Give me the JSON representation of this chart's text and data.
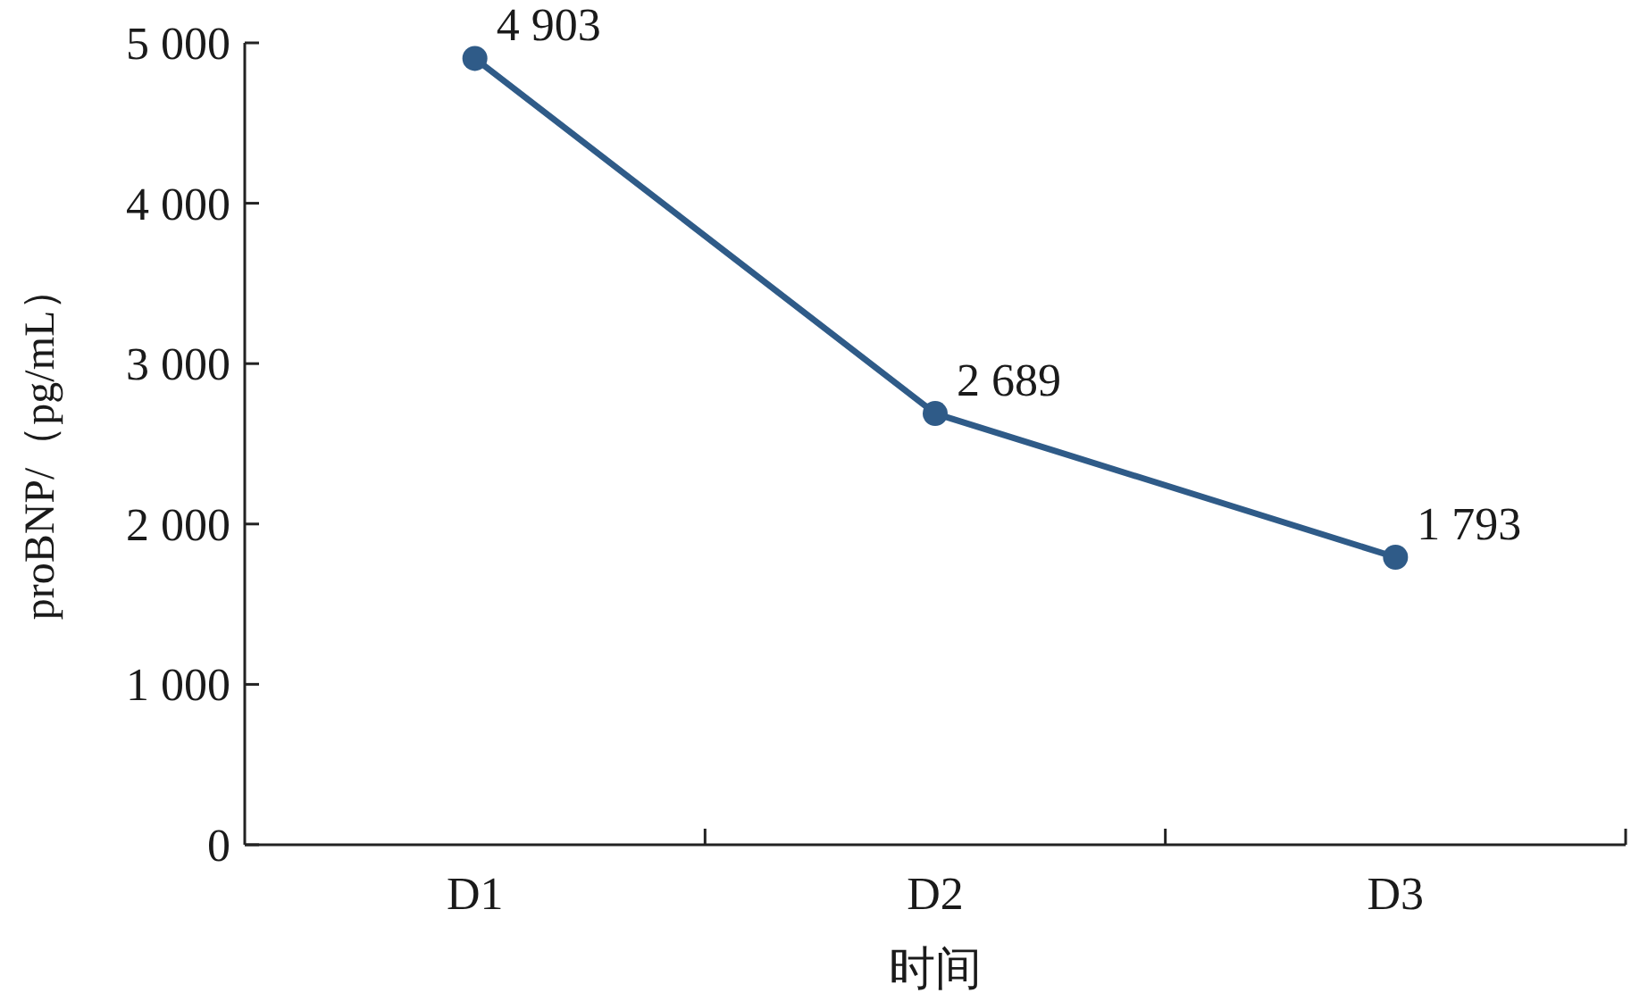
{
  "chart_data": {
    "type": "line",
    "xlabel": "时间",
    "ylabel": "proBNP/（pg/mL）",
    "categories": [
      "D1",
      "D2",
      "D3"
    ],
    "values": [
      4903,
      2689,
      1793
    ],
    "value_labels": [
      "4 903",
      "2 689",
      "1 793"
    ],
    "color": "#2f5b88",
    "marker": "circle",
    "ylim": [
      0,
      5000
    ],
    "yticks": [
      {
        "value": 0,
        "label": "0"
      },
      {
        "value": 1000,
        "label": "1 000"
      },
      {
        "value": 2000,
        "label": "2 000"
      },
      {
        "value": 3000,
        "label": "3 000"
      },
      {
        "value": 4000,
        "label": "4 000"
      },
      {
        "value": 5000,
        "label": "5 000"
      }
    ]
  }
}
